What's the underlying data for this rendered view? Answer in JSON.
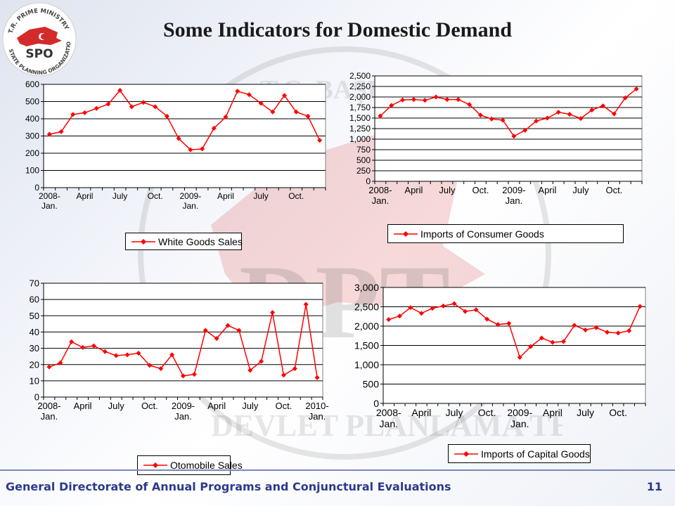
{
  "title": "Some Indicators for Domestic Demand",
  "logo": {
    "top_text": "T.R. PRIME MINISTRY",
    "bottom_text": "STATE PLANNING ORGANIZATION",
    "acronym": "SPO"
  },
  "watermark": {
    "text_arc_1": "T.C. BAŞBAKANLIK",
    "text_center": "DPT",
    "text_arc_2": "DEVLET PLANLAMA TEŞKİLATI"
  },
  "footer": {
    "text": "General Directorate of Annual Programs and Conjunctural Evaluations",
    "page": "11"
  },
  "colors": {
    "series": "#ff0000",
    "footer_text": "#2c3a8c",
    "footer_line": "#7c87b8"
  },
  "chart_data": [
    {
      "type": "line",
      "legend": "White Goods Sales",
      "legend_position": "bottom",
      "grid": true,
      "ylim": [
        0,
        600
      ],
      "yticks": [
        "0",
        "100",
        "200",
        "300",
        "400",
        "500",
        "600"
      ],
      "xtick_labels": [
        [
          "2008-",
          "Jan."
        ],
        [
          "April"
        ],
        [
          "July"
        ],
        [
          "Oct."
        ],
        [
          "2009-",
          "Jan."
        ],
        [
          "April"
        ],
        [
          "July"
        ],
        [
          "Oct."
        ]
      ],
      "series": [
        {
          "name": "White Goods Sales",
          "values": [
            310,
            325,
            425,
            435,
            460,
            485,
            565,
            470,
            495,
            470,
            415,
            285,
            220,
            225,
            345,
            410,
            560,
            540,
            490,
            440,
            535,
            440,
            415,
            275
          ]
        }
      ]
    },
    {
      "type": "line",
      "legend": "Imports of Consumer Goods",
      "legend_position": "bottom",
      "grid": true,
      "ylim": [
        0,
        2500
      ],
      "yticks": [
        "0",
        "250",
        "500",
        "750",
        "1,000",
        "1,250",
        "1,500",
        "1,750",
        "2,000",
        "2,250",
        "2,500"
      ],
      "xtick_labels": [
        [
          "2008-",
          "Jan."
        ],
        [
          "April"
        ],
        [
          "July"
        ],
        [
          "Oct."
        ],
        [
          "2009-",
          "Jan."
        ],
        [
          "April"
        ],
        [
          "July"
        ],
        [
          "Oct."
        ]
      ],
      "series": [
        {
          "name": "Imports of Consumer Goods",
          "values": [
            1550,
            1800,
            1930,
            1940,
            1920,
            2000,
            1940,
            1940,
            1820,
            1570,
            1480,
            1450,
            1070,
            1210,
            1430,
            1500,
            1640,
            1590,
            1490,
            1690,
            1790,
            1600,
            1980,
            2190
          ]
        }
      ]
    },
    {
      "type": "line",
      "legend": "Otomobile Sales",
      "legend_position": "bottom",
      "grid": true,
      "ylim": [
        0,
        70
      ],
      "yticks": [
        "0",
        "10",
        "20",
        "30",
        "40",
        "50",
        "60",
        "70"
      ],
      "xtick_labels": [
        [
          "2008-",
          "Jan."
        ],
        [
          "April"
        ],
        [
          "July"
        ],
        [
          "Oct."
        ],
        [
          "2009-",
          "Jan."
        ],
        [
          "April"
        ],
        [
          "July"
        ],
        [
          "Oct."
        ],
        [
          "2010-",
          "Jan."
        ]
      ],
      "series": [
        {
          "name": "Otomobile Sales",
          "values": [
            18.5,
            21,
            34,
            30.5,
            31.5,
            28,
            25.5,
            26,
            27,
            19.5,
            17.5,
            26,
            13,
            14,
            41,
            36,
            44,
            41,
            16.5,
            22,
            52,
            13.5,
            17.5,
            57,
            12
          ]
        }
      ]
    },
    {
      "type": "line",
      "legend": "Imports of Capital Goods",
      "legend_position": "bottom",
      "grid": true,
      "ylim": [
        0,
        3000
      ],
      "yticks": [
        "0",
        "500",
        "1,000",
        "1,500",
        "2,000",
        "2,500",
        "3,000"
      ],
      "xtick_labels": [
        [
          "2008-",
          "Jan."
        ],
        [
          "April"
        ],
        [
          "July"
        ],
        [
          "Oct."
        ],
        [
          "2009-",
          "Jan."
        ],
        [
          "April"
        ],
        [
          "July"
        ],
        [
          "Oct."
        ]
      ],
      "series": [
        {
          "name": "Imports of Capital Goods",
          "values": [
            2170,
            2260,
            2480,
            2330,
            2460,
            2520,
            2580,
            2380,
            2420,
            2180,
            2040,
            2070,
            1190,
            1470,
            1690,
            1580,
            1600,
            2020,
            1900,
            1960,
            1840,
            1820,
            1880,
            2510
          ]
        }
      ]
    }
  ]
}
